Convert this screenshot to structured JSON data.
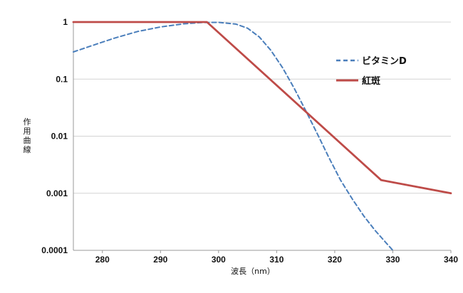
{
  "chart_data": {
    "type": "line",
    "xlabel": "波長（nm）",
    "ylabel": "作用曲線",
    "xlim": [
      275,
      340
    ],
    "ylim": [
      0.0001,
      1
    ],
    "yscale": "log",
    "grid": "horizontal",
    "legend_placement": "right",
    "x_ticks": [
      280,
      290,
      300,
      310,
      320,
      330,
      340
    ],
    "x_tick_labels": [
      "280",
      "290",
      "300",
      "310",
      "320",
      "330",
      "340"
    ],
    "y_ticks": [
      1,
      0.1,
      0.01,
      0.001,
      0.0001
    ],
    "y_tick_labels": [
      "1",
      "0.1",
      "0.01",
      "0.001",
      "0.0001"
    ],
    "series": [
      {
        "name": "ビタミンD",
        "style": "dashed",
        "color": "#4a7ebb",
        "x": [
          275,
          278,
          282,
          286,
          290,
          294,
          297,
          300,
          303,
          305,
          307,
          309,
          311,
          313,
          315,
          317,
          319,
          321,
          323,
          325,
          327,
          329,
          330
        ],
        "y": [
          0.3,
          0.38,
          0.52,
          0.68,
          0.82,
          0.93,
          0.98,
          0.99,
          0.92,
          0.78,
          0.55,
          0.32,
          0.16,
          0.07,
          0.028,
          0.011,
          0.0042,
          0.0017,
          0.0008,
          0.0004,
          0.00022,
          0.00013,
          0.0001
        ]
      },
      {
        "name": "紅斑",
        "style": "solid",
        "color": "#be4b48",
        "x": [
          275,
          298,
          328,
          340
        ],
        "y": [
          1,
          1,
          0.0017,
          0.001
        ]
      }
    ]
  }
}
